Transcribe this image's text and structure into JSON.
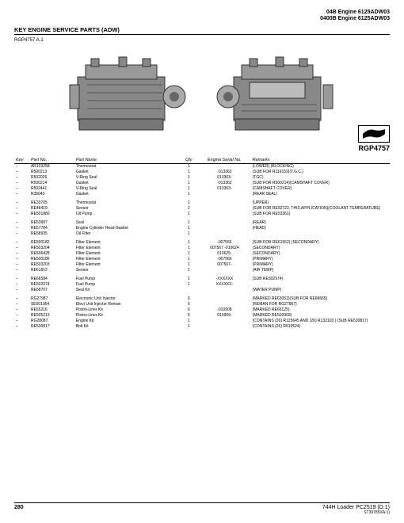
{
  "header": {
    "line1": "04B Engine 6125ADW03",
    "line2": "0400B Engine 6125ADW03"
  },
  "section_title": "KEY ENGINE SERVICE PARTS (ADW)",
  "figure_code": "RGP4757 A.1",
  "logo_label": "RGP4757",
  "columns": {
    "key": "Key",
    "partno": "Part No.",
    "partname": "Part Name",
    "qty": "Qty",
    "serial": "Engine Serial No.",
    "remarks": "Remarks"
  },
  "rows": [
    {
      "key": "–",
      "partno": "AR103258",
      "name": "Thermostat",
      "qty": "1",
      "serial": "",
      "remarks": "(LOWER) (BLOCKING)"
    },
    {
      "key": "–",
      "partno": "R500213",
      "name": "Gasket",
      "qty": "1",
      "serial": "-013362",
      "remarks": "(SUB FOR R119152)(T.G.C.)"
    },
    {
      "key": "–",
      "partno": "R502026",
      "name": "V-Ring Seal",
      "qty": "1",
      "serial": "013363-",
      "remarks": "(TGC)"
    },
    {
      "key": "–",
      "partno": "R500214",
      "name": "Gasket",
      "qty": "1",
      "serial": "-013362",
      "remarks": "(SUB FOR R500214)(CAMSHAFT COVER)"
    },
    {
      "key": "–",
      "partno": "R502441",
      "name": "V-Ring Seal",
      "qty": "1",
      "serial": "013363-",
      "remarks": "(CAMSHAFT COVER)"
    },
    {
      "key": "–",
      "partno": "R35043",
      "name": "Gasket",
      "qty": "1",
      "serial": "",
      "remarks": "(REAR SEAL)"
    },
    {
      "gap": true
    },
    {
      "key": "–",
      "partno": "RE33705",
      "name": "Thermostat",
      "qty": "1",
      "serial": "",
      "remarks": "(UPPER)"
    },
    {
      "key": "–",
      "partno": "RE48419",
      "name": "Sensor",
      "qty": "2",
      "serial": "",
      "remarks": "(SUB FOR RE52722, THIS APPLICATION)(COOLANT TEMPERATURE)"
    },
    {
      "key": "–",
      "partno": "RE501880",
      "name": "Oil Pump",
      "qty": "1",
      "serial": "",
      "remarks": "(SUB FOR RE53361)"
    },
    {
      "gap": true
    },
    {
      "key": "–",
      "partno": "RE53687",
      "name": "Seal",
      "qty": "1",
      "serial": "",
      "remarks": "(REAR)"
    },
    {
      "key": "–",
      "partno": "RE57784",
      "name": "Engine Cylinder Head Gasket",
      "qty": "1",
      "serial": "",
      "remarks": "(HEAD)"
    },
    {
      "key": "–",
      "partno": "RE58935",
      "name": "Oil Filter",
      "qty": "1",
      "serial": "",
      "remarks": ""
    },
    {
      "gap": true
    },
    {
      "key": "–",
      "partno": "RE500182",
      "name": "Filter Element",
      "qty": "1",
      "serial": "-007566",
      "remarks": "(SUB FOR RE61552) (SECONDARY)"
    },
    {
      "key": "–",
      "partno": "RE503204",
      "name": "Filter Element",
      "qty": "1",
      "serial": "007567 -010624",
      "remarks": "(SECONDARY)"
    },
    {
      "key": "–",
      "partno": "RE506428",
      "name": "Filter Element",
      "qty": "1",
      "serial": "010625-",
      "remarks": "(SECONDARY)"
    },
    {
      "key": "–",
      "partno": "RE500186",
      "name": "Filter Element",
      "qty": "1",
      "serial": "-007566",
      "remarks": "(PRIMARY)"
    },
    {
      "key": "–",
      "partno": "RE503203",
      "name": "Filter Element",
      "qty": "1",
      "serial": "007567-",
      "remarks": "(PRIMARY)"
    },
    {
      "key": "–",
      "partno": "RE61812",
      "name": "Sensor",
      "qty": "1",
      "serial": "",
      "remarks": "(AIR TEMP)"
    },
    {
      "gap": true
    },
    {
      "key": "–",
      "partno": "RE66584",
      "name": "Fuel Pump",
      "qty": "1",
      "serial": "-XXXXXX",
      "remarks": "(SUB RE502974)"
    },
    {
      "key": "–",
      "partno": "RE502974",
      "name": "Fuel Pump",
      "qty": "1",
      "serial": "XXXXXX-",
      "remarks": ""
    },
    {
      "key": "–",
      "partno": "RE68707",
      "name": "Seal Kit",
      "qty": "",
      "serial": "",
      "remarks": "(WATER PUMP)"
    },
    {
      "gap": true
    },
    {
      "key": "–",
      "partno": "RG27987",
      "name": "Electronic Unit Injector",
      "qty": "6",
      "serial": "",
      "remarks": "(MARKED RE63052)(SUB FOR RE68665)"
    },
    {
      "key": "–",
      "partno": "SE501954",
      "name": "Elect Unit Injector Reman",
      "qty": "6",
      "serial": "",
      "remarks": "(REMAN FOR RG27867)"
    },
    {
      "key": "–",
      "partno": "RE65216",
      "name": "Piston-Liner Kit",
      "qty": "6",
      "serial": "-010908",
      "remarks": "(MARKED RE66125)"
    },
    {
      "key": "–",
      "partno": "RE505213",
      "name": "Piston-Liner Kit",
      "qty": "6",
      "serial": "010909-",
      "remarks": "(MARKED RE503969)"
    },
    {
      "key": "–",
      "partno": "RG28087",
      "name": "Engine Kit",
      "qty": "1",
      "serial": "",
      "remarks": "(CONTAINS (26) R125645 AND (26) R132103 ) (SUB RE530817)"
    },
    {
      "key": "–",
      "partno": "RE530817",
      "name": "Bolt Kit",
      "qty": "1",
      "serial": "",
      "remarks": "(CONTAINS (26) R519524)"
    }
  ],
  "footer": {
    "page": "280",
    "right1": "744H Loader   PC2519   (D.1)",
    "right2": "ST39785XA.1)"
  }
}
